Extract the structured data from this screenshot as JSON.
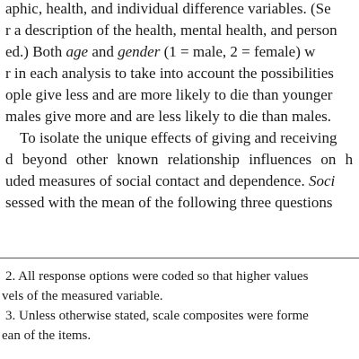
{
  "body": {
    "line1": "aphic, health, and individual difference variables. (Se",
    "line2": "r a description of the health, mental health, and person",
    "line3_a": "ed.) Both ",
    "line3_b": "age",
    "line3_c": " and ",
    "line3_d": "gender",
    "line3_e": " (1 = male, 2 = female) w",
    "line4": "r in each analysis to take into account the possibilities",
    "line5": "ople give less and are more likely to die than younger",
    "line6": "males give more and are less likely to die than males.",
    "line7": "To isolate the unique effects of giving and receiving",
    "line8": "d beyond other known relationship influences on h",
    "line9_a": "uded measures of social contact and dependence. ",
    "line9_b": "Soci",
    "line10": "sessed with the mean of the following three questions"
  },
  "footnotes": {
    "fn2_line1": "2.  All response options were coded so that higher values",
    "fn2_line2": "vels of the measured variable.",
    "fn3_line1": "3.  Unless otherwise stated, scale composites were forme",
    "fn3_line2": "ean of the items."
  }
}
